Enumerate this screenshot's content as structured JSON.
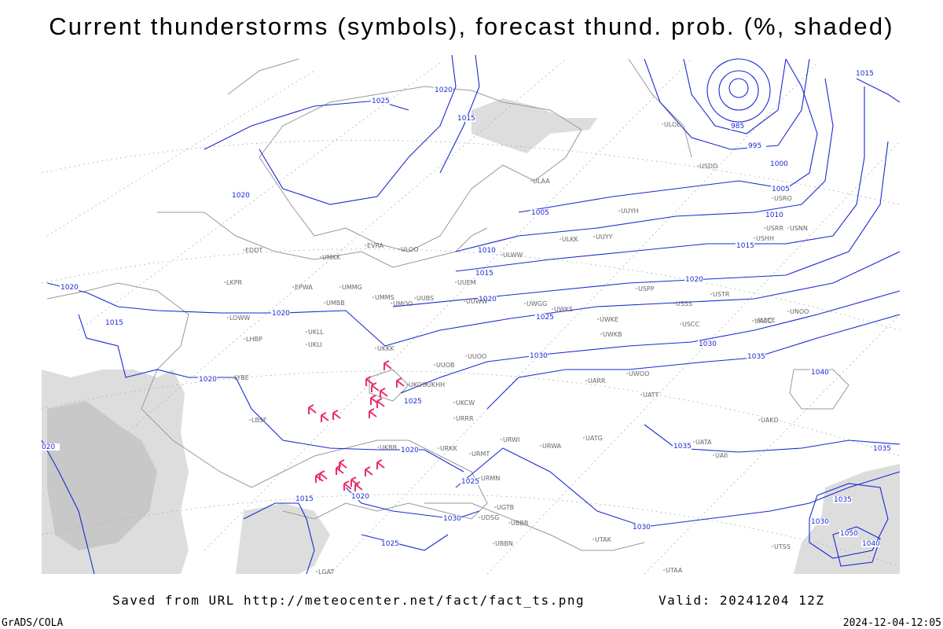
{
  "header": {
    "title": "Current thunderstorms (symbols), forecast thund. prob. (%, shaded)"
  },
  "footer": {
    "source": "Saved from URL http://meteocenter.net/fact/fact_ts.png",
    "valid": "Valid: 20241204 12Z",
    "software": "GrADS/COLA",
    "timestamp": "2024-12-04-12:05"
  },
  "map": {
    "isobar_labels": [
      "1025",
      "1020",
      "1015",
      "985",
      "995",
      "1000",
      "1005",
      "1010",
      "1015",
      "1020",
      "1005",
      "1010",
      "1015",
      "1020",
      "1025",
      "1030",
      "1030",
      "1035",
      "1040",
      "1035",
      "1035",
      "1030",
      "1020",
      "1020",
      "1015",
      "1020",
      "1020",
      "020",
      "1020",
      "1025",
      "1020",
      "1015",
      "1030",
      "1025",
      "1025",
      "1015",
      "1035",
      "1030",
      "1050",
      "1040"
    ],
    "station_labels": [
      "ULOL",
      "USDD",
      "USNN",
      "USRO",
      "USRR",
      "USHH",
      "UUYH",
      "UUYY",
      "ULKK",
      "ULWW",
      "ULAA",
      "ULOO",
      "EVRA",
      "UMKK",
      "EPWA",
      "UMMG",
      "UMBB",
      "UMMS",
      "UMOO",
      "UUBS",
      "UUEM",
      "UUWW",
      "UWGG",
      "UWKS",
      "UWKE",
      "UWKB",
      "USPP",
      "USSS",
      "USTR",
      "USCC",
      "UACC",
      "UNOO",
      "UUOB",
      "UKKK",
      "UKHH",
      "UUOO",
      "UKCW",
      "URRR",
      "URWI",
      "URWA",
      "UATG",
      "UARR",
      "UWOO",
      "UATT",
      "UAKD",
      "UACE",
      "UATA",
      "UAII",
      "UBBB",
      "UTSS",
      "EDDT",
      "LKPR",
      "LOWW",
      "LHBP",
      "LYBE",
      "LBSF",
      "LGAT",
      "UKLL",
      "UKLI",
      "UKBB",
      "UKOO",
      "URKK",
      "URMT",
      "URMN",
      "UGTB",
      "UDSG",
      "UBBN",
      "UTAK",
      "UTAA"
    ]
  }
}
